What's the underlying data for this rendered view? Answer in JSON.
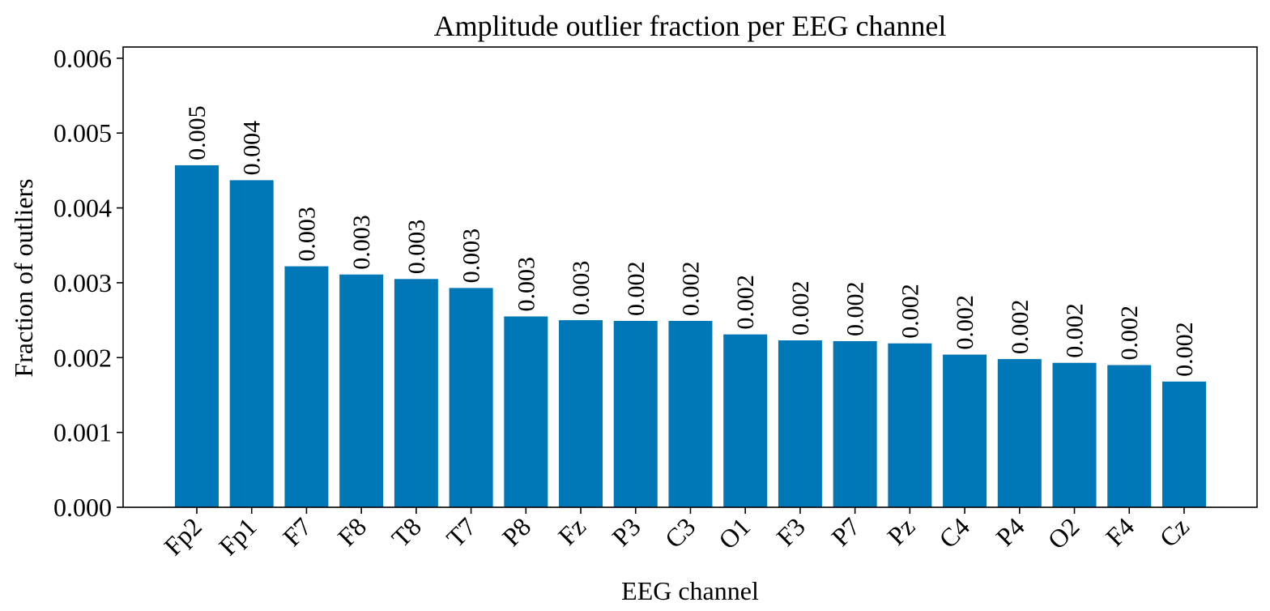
{
  "chart_data": {
    "type": "bar",
    "title": "Amplitude outlier fraction per EEG channel",
    "xlabel": "EEG channel",
    "ylabel": "Fraction of outliers",
    "ylim": [
      0,
      0.00615
    ],
    "yticks": [
      "0.000",
      "0.001",
      "0.002",
      "0.003",
      "0.004",
      "0.005",
      "0.006"
    ],
    "grid": false,
    "bar_color": "#0077b6",
    "categories": [
      "Fp2",
      "Fp1",
      "F7",
      "F8",
      "T8",
      "T7",
      "P8",
      "Fz",
      "P3",
      "C3",
      "O1",
      "F3",
      "P7",
      "Pz",
      "C4",
      "P4",
      "O2",
      "F4",
      "Cz"
    ],
    "values": [
      0.00457,
      0.00437,
      0.00322,
      0.00311,
      0.00305,
      0.00293,
      0.00255,
      0.0025,
      0.00249,
      0.00249,
      0.00231,
      0.00223,
      0.00222,
      0.00219,
      0.00204,
      0.00198,
      0.00193,
      0.0019,
      0.00168
    ],
    "data_labels": [
      "0.005",
      "0.004",
      "0.003",
      "0.003",
      "0.003",
      "0.003",
      "0.003",
      "0.003",
      "0.002",
      "0.002",
      "0.002",
      "0.002",
      "0.002",
      "0.002",
      "0.002",
      "0.002",
      "0.002",
      "0.002",
      "0.002"
    ]
  }
}
